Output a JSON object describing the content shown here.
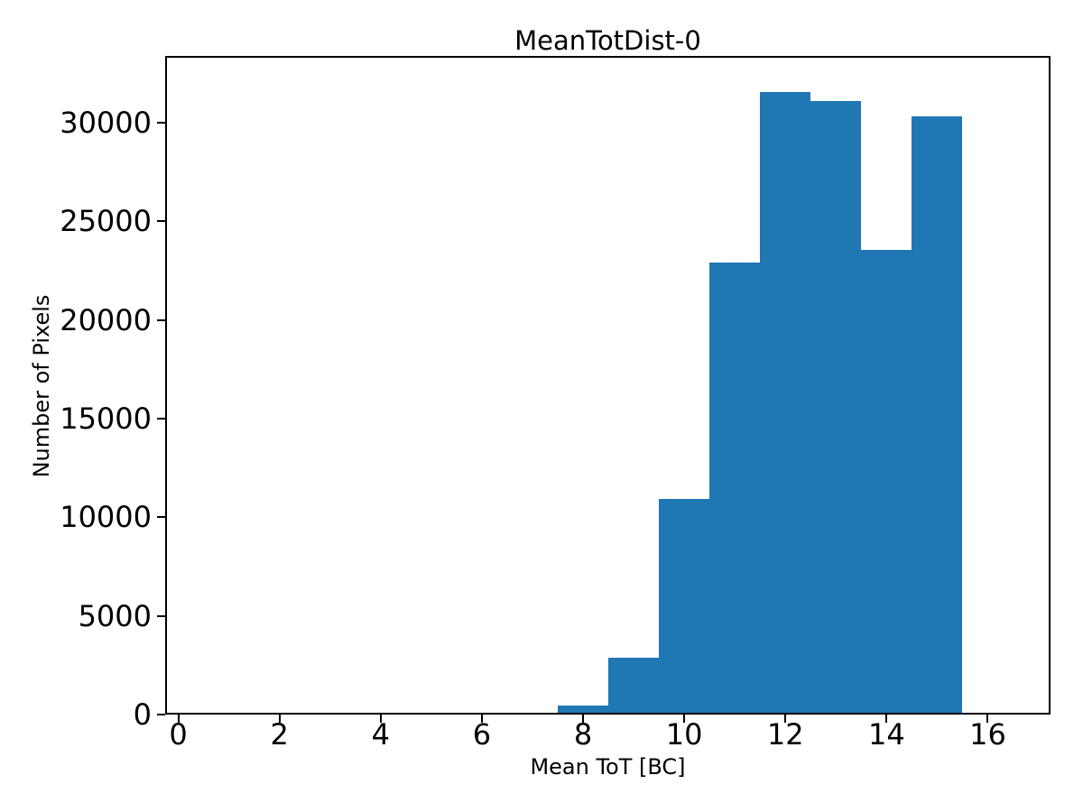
{
  "chart_data": {
    "type": "bar",
    "subtype": "histogram",
    "title": "MeanTotDist-0",
    "xlabel": "Mean ToT [BC]",
    "ylabel": "Number of Pixels",
    "bar_color": "#1f77b4",
    "axis_color": "#000000",
    "background_color": "#ffffff",
    "bin_edges": [
      6.5,
      7.5,
      8.5,
      9.5,
      10.5,
      11.5,
      12.5,
      13.5,
      14.5,
      15.5
    ],
    "counts": [
      110,
      470,
      2860,
      10940,
      22910,
      31530,
      31090,
      23540,
      30330
    ],
    "x_ticks": [
      0,
      2,
      4,
      6,
      8,
      10,
      12,
      14,
      16
    ],
    "y_ticks": [
      0,
      5000,
      10000,
      15000,
      20000,
      25000,
      30000
    ],
    "xlim": [
      -0.26,
      17.24
    ],
    "ylim": [
      0,
      33375
    ],
    "grid": false,
    "legend": "none"
  }
}
